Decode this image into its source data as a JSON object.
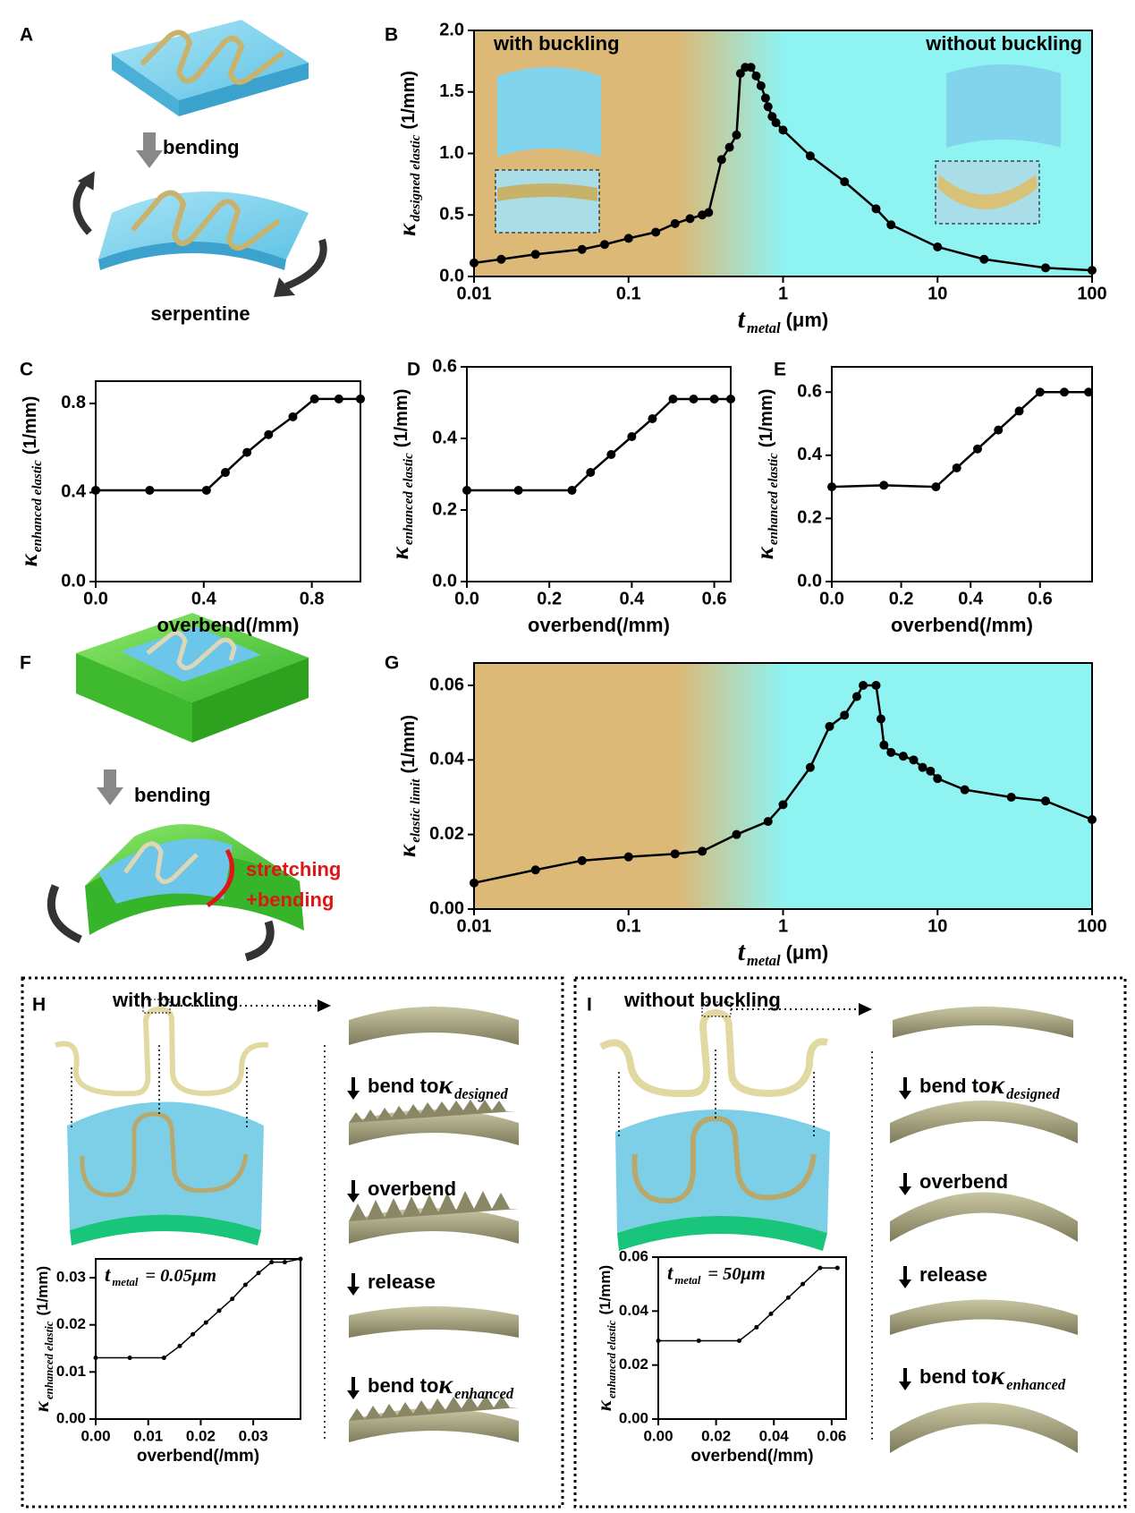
{
  "figure": {
    "panels": [
      "A",
      "B",
      "C",
      "D",
      "E",
      "F",
      "G",
      "H",
      "I"
    ],
    "A": {
      "arrow_label": "bending",
      "caption": "serpentine"
    },
    "B": {
      "left_label": "with buckling",
      "right_label": "without buckling"
    },
    "F": {
      "arrow_label": "bending",
      "note": [
        "stretching",
        "+bending"
      ]
    },
    "H": {
      "title": "with buckling",
      "steps": [
        {
          "text": "bend to",
          "symbol": "κ",
          "sub": "designed"
        },
        {
          "text": "overbend"
        },
        {
          "text": "release"
        },
        {
          "text": "bend to",
          "symbol": "κ",
          "sub": "enhanced"
        }
      ]
    },
    "I": {
      "title": "without buckling",
      "steps": [
        {
          "text": "bend to",
          "symbol": "κ",
          "sub": "designed"
        },
        {
          "text": "overbend"
        },
        {
          "text": "release"
        },
        {
          "text": "bend to",
          "symbol": "κ",
          "sub": "enhanced"
        }
      ]
    }
  },
  "chart_data": [
    {
      "type": "line",
      "xscale": "log",
      "color": "#000000",
      "background": [
        "#dcb977",
        "#8ef3f1"
      ],
      "xlabel": {
        "symbol": "t",
        "sub": "metal",
        "unit": "(μm)"
      },
      "ylabel": {
        "symbol": "κ",
        "sub": "designed elastic",
        "unit": "(1/mm)"
      },
      "x": [
        0.01,
        0.015,
        0.025,
        0.05,
        0.07,
        0.1,
        0.15,
        0.2,
        0.25,
        0.3,
        0.33,
        0.4,
        0.45,
        0.5,
        0.53,
        0.57,
        0.62,
        0.67,
        0.72,
        0.77,
        0.8,
        0.85,
        0.9,
        1.0,
        1.5,
        2.5,
        4,
        5,
        10,
        20,
        50,
        100
      ],
      "values": [
        0.11,
        0.14,
        0.18,
        0.22,
        0.26,
        0.31,
        0.36,
        0.43,
        0.47,
        0.5,
        0.52,
        0.95,
        1.05,
        1.15,
        1.65,
        1.7,
        1.7,
        1.63,
        1.55,
        1.45,
        1.38,
        1.3,
        1.25,
        1.19,
        0.98,
        0.77,
        0.55,
        0.42,
        0.24,
        0.14,
        0.07,
        0.05
      ],
      "xlim": [
        0.01,
        100
      ],
      "xticks": [
        0.01,
        0.1,
        1,
        10,
        100
      ],
      "ylim": [
        0,
        2.0
      ],
      "yticks": [
        {
          "value": 0,
          "label": "0.0"
        },
        0.5,
        {
          "value": 1,
          "label": "1.0"
        },
        1.5,
        {
          "value": 2,
          "label": "2.0"
        }
      ]
    },
    {
      "type": "line",
      "xscale": "linear",
      "color": "#000000",
      "xlabel": "overbend(/mm)",
      "ylabel": {
        "symbol": "κ",
        "sub": "enhanced elastic",
        "unit": "(1/mm)"
      },
      "x": [
        0,
        0.2,
        0.41,
        0.48,
        0.56,
        0.64,
        0.73,
        0.81,
        0.9,
        0.98
      ],
      "values": [
        0.41,
        0.41,
        0.41,
        0.49,
        0.58,
        0.66,
        0.74,
        0.82,
        0.82,
        0.82
      ],
      "xlim": [
        0,
        0.98
      ],
      "xticks": [
        {
          "value": 0,
          "label": "0.0"
        },
        0.4,
        0.8
      ],
      "ylim": [
        0,
        0.9
      ],
      "yticks": [
        {
          "value": 0,
          "label": "0.0"
        },
        0.4,
        0.8
      ]
    },
    {
      "type": "line",
      "xscale": "linear",
      "color": "#000000",
      "xlabel": "overbend(/mm)",
      "ylabel": {
        "symbol": "κ",
        "sub": "enhanced elastic",
        "unit": "(1/mm)"
      },
      "x": [
        0,
        0.125,
        0.255,
        0.3,
        0.35,
        0.4,
        0.45,
        0.5,
        0.55,
        0.6,
        0.64
      ],
      "values": [
        0.255,
        0.255,
        0.255,
        0.305,
        0.355,
        0.405,
        0.455,
        0.51,
        0.51,
        0.51,
        0.51
      ],
      "xlim": [
        0,
        0.64
      ],
      "xticks": [
        {
          "value": 0,
          "label": "0.0"
        },
        0.2,
        0.4,
        0.6
      ],
      "ylim": [
        0,
        0.6
      ],
      "yticks": [
        {
          "value": 0,
          "label": "0.0"
        },
        0.2,
        0.4,
        0.6
      ]
    },
    {
      "type": "line",
      "xscale": "linear",
      "color": "#000000",
      "xlabel": "overbend(/mm)",
      "ylabel": {
        "symbol": "κ",
        "sub": "enhanced elastic",
        "unit": "(1/mm)"
      },
      "x": [
        0,
        0.15,
        0.3,
        0.36,
        0.42,
        0.48,
        0.54,
        0.6,
        0.67,
        0.74
      ],
      "values": [
        0.3,
        0.305,
        0.3,
        0.36,
        0.42,
        0.48,
        0.54,
        0.6,
        0.6,
        0.6
      ],
      "xlim": [
        0,
        0.75
      ],
      "xticks": [
        {
          "value": 0,
          "label": "0.0"
        },
        0.2,
        0.4,
        0.6
      ],
      "ylim": [
        0,
        0.68
      ],
      "yticks": [
        {
          "value": 0,
          "label": "0.0"
        },
        0.2,
        0.4,
        0.6
      ]
    },
    {
      "type": "line",
      "xscale": "log",
      "color": "#000000",
      "background": [
        "#dcb977",
        "#8ef3f1"
      ],
      "xlabel": {
        "symbol": "t",
        "sub": "metal",
        "unit": "(μm)"
      },
      "ylabel": {
        "symbol": "κ",
        "sub": "elastic limit",
        "unit": "(1/mm)"
      },
      "x": [
        0.01,
        0.025,
        0.05,
        0.1,
        0.2,
        0.3,
        0.5,
        0.8,
        1,
        1.5,
        2,
        2.5,
        3,
        3.3,
        4,
        4.3,
        4.5,
        5,
        6,
        7,
        8,
        9,
        10,
        15,
        30,
        50,
        100
      ],
      "values": [
        0.007,
        0.0105,
        0.013,
        0.014,
        0.0148,
        0.0155,
        0.02,
        0.0235,
        0.028,
        0.038,
        0.049,
        0.052,
        0.057,
        0.06,
        0.06,
        0.051,
        0.044,
        0.042,
        0.041,
        0.04,
        0.038,
        0.037,
        0.035,
        0.032,
        0.03,
        0.029,
        0.024
      ],
      "xlim": [
        0.01,
        100
      ],
      "xticks": [
        0.01,
        0.1,
        1,
        10,
        100
      ],
      "ylim": [
        0,
        0.066
      ],
      "yticks": [
        {
          "value": 0,
          "label": "0.00"
        },
        0.02,
        0.04,
        0.06
      ]
    },
    {
      "type": "line",
      "xscale": "linear",
      "color": "#000000",
      "xlabel": "overbend(/mm)",
      "ylabel": {
        "symbol": "κ",
        "sub": "enhanced elastic",
        "unit": "(1/mm)"
      },
      "annotation": {
        "symbol": "t",
        "sub": "metal",
        "rest": "= 0.05μm"
      },
      "x": [
        0,
        0.0065,
        0.013,
        0.016,
        0.0185,
        0.021,
        0.0235,
        0.026,
        0.0285,
        0.031,
        0.0335,
        0.036,
        0.039
      ],
      "values": [
        0.013,
        0.013,
        0.013,
        0.0155,
        0.018,
        0.0205,
        0.023,
        0.0255,
        0.0285,
        0.031,
        0.0333,
        0.0333,
        0.034
      ],
      "xlim": [
        0,
        0.039
      ],
      "xticks": [
        {
          "value": 0,
          "label": "0.00"
        },
        0.01,
        0.02,
        0.03
      ],
      "ylim": [
        0,
        0.034
      ],
      "yticks": [
        {
          "value": 0,
          "label": "0.00"
        },
        0.01,
        0.02,
        0.03
      ]
    },
    {
      "type": "line",
      "xscale": "linear",
      "color": "#000000",
      "xlabel": "overbend(/mm)",
      "ylabel": {
        "symbol": "κ",
        "sub": "enhanced elastic",
        "unit": "(1/mm)"
      },
      "annotation": {
        "symbol": "t",
        "sub": "metal",
        "rest": "= 50μm"
      },
      "x": [
        0,
        0.014,
        0.028,
        0.034,
        0.039,
        0.045,
        0.05,
        0.056,
        0.062
      ],
      "values": [
        0.029,
        0.029,
        0.029,
        0.034,
        0.039,
        0.045,
        0.05,
        0.056,
        0.056
      ],
      "xlim": [
        0,
        0.065
      ],
      "xticks": [
        {
          "value": 0,
          "label": "0.00"
        },
        0.02,
        0.04,
        0.06
      ],
      "ylim": [
        0,
        0.06
      ],
      "yticks": [
        {
          "value": 0,
          "label": "0.00"
        },
        0.02,
        0.04,
        0.06
      ]
    }
  ]
}
